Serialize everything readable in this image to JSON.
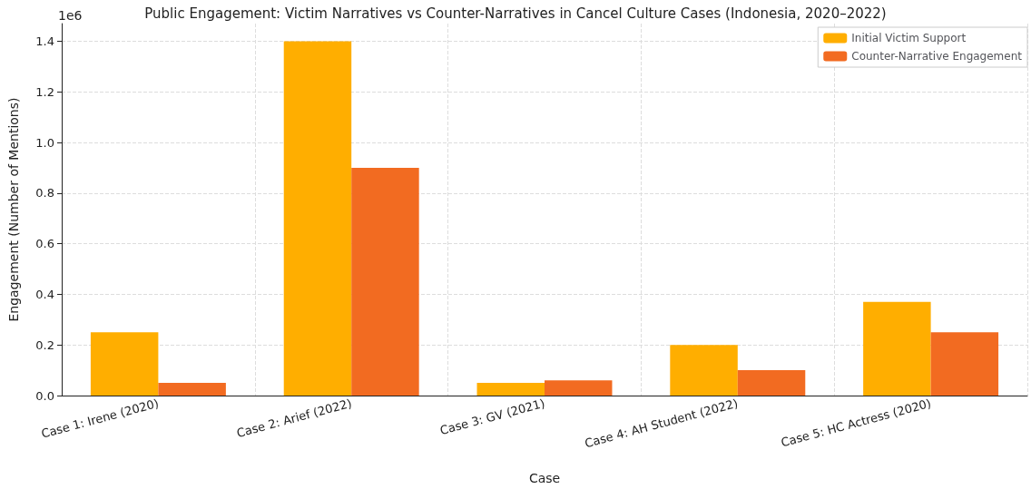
{
  "chart_data": {
    "type": "bar",
    "title": "Public Engagement: Victim Narratives vs Counter-Narratives in Cancel Culture Cases (Indonesia, 2020–2022)",
    "xlabel": "Case",
    "ylabel": "Engagement (Number of Mentions)",
    "annotations": [
      "1e6"
    ],
    "categories": [
      "Case 1: Irene (2020)",
      "Case 2: Arief (2022)",
      "Case 3: GV (2021)",
      "Case 4: AH Student (2022)",
      "Case 5: HC Actress (2020)"
    ],
    "series": [
      {
        "name": "Initial Victim Support",
        "color": "#ffae00",
        "values": [
          0.25,
          1.4,
          0.05,
          0.2,
          0.37
        ]
      },
      {
        "name": "Counter-Narrative Engagement",
        "color": "#f26b21",
        "values": [
          0.05,
          0.9,
          0.06,
          0.1,
          0.25
        ]
      }
    ],
    "ylim": [
      0,
      1.47
    ],
    "yticks": [
      {
        "value": 0,
        "label": "0.0"
      },
      0.2,
      0.4,
      0.6,
      0.8,
      {
        "value": 1,
        "label": "1.0"
      },
      1.2,
      1.4
    ],
    "grid": true,
    "legend": "top right"
  }
}
